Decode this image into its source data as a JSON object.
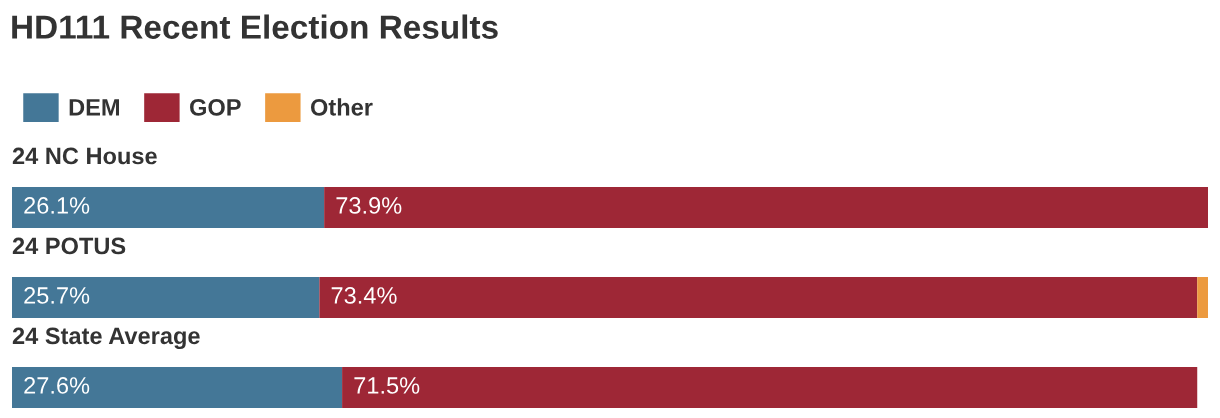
{
  "chart_data": {
    "type": "bar",
    "title": "HD111 Recent Election Results",
    "orientation": "horizontal",
    "stacked": true,
    "categories": [
      "24 NC House",
      "24 POTUS",
      "24 State Average"
    ],
    "series": [
      {
        "name": "DEM",
        "color": "#447797",
        "values": [
          26.1,
          25.7,
          27.6
        ],
        "value_labels": [
          "26.1%",
          "25.7%",
          "27.6%"
        ]
      },
      {
        "name": "GOP",
        "color": "#9e2736",
        "values": [
          73.9,
          73.4,
          71.5
        ],
        "value_labels": [
          "73.9%",
          "73.4%",
          "71.5%"
        ]
      },
      {
        "name": "Other",
        "color": "#ec9a3f",
        "values": [
          null,
          0.9,
          null
        ]
      }
    ],
    "xlim": [
      0,
      100
    ],
    "legend": "top left"
  }
}
